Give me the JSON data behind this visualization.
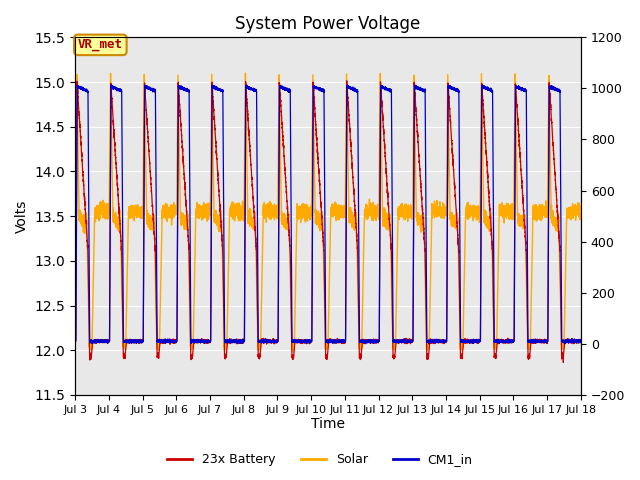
{
  "title": "System Power Voltage",
  "xlabel": "Time",
  "ylabel": "Volts",
  "xlim_days": [
    3,
    18
  ],
  "ylim_left": [
    11.5,
    15.5
  ],
  "ylim_right": [
    -200,
    1200
  ],
  "yticks_left": [
    11.5,
    12.0,
    12.5,
    13.0,
    13.5,
    14.0,
    14.5,
    15.0,
    15.5
  ],
  "yticks_right": [
    -200,
    0,
    200,
    400,
    600,
    800,
    1000,
    1200
  ],
  "xtick_labels": [
    "Jul 3",
    "Jul 4",
    "Jul 5",
    "Jul 6",
    "Jul 7",
    "Jul 8",
    "Jul 9",
    "Jul 10",
    "Jul 11",
    "Jul 12",
    "Jul 13",
    "Jul 14",
    "Jul 15",
    "Jul 16",
    "Jul 17",
    "Jul 18"
  ],
  "xtick_positions": [
    3,
    4,
    5,
    6,
    7,
    8,
    9,
    10,
    11,
    12,
    13,
    14,
    15,
    16,
    17,
    18
  ],
  "color_battery": "#cc0000",
  "color_solar": "#ffaa00",
  "color_cm1": "#0000cc",
  "legend_labels": [
    "23x Battery",
    "Solar",
    "CM1_in"
  ],
  "annotation_text": "VR_met",
  "annotation_color": "#aa0000",
  "annotation_bg": "#ffff99",
  "annotation_border": "#cc8800",
  "bg_color": "#e8e8e8",
  "grid_color": "white",
  "day_start": 3,
  "day_end": 18
}
